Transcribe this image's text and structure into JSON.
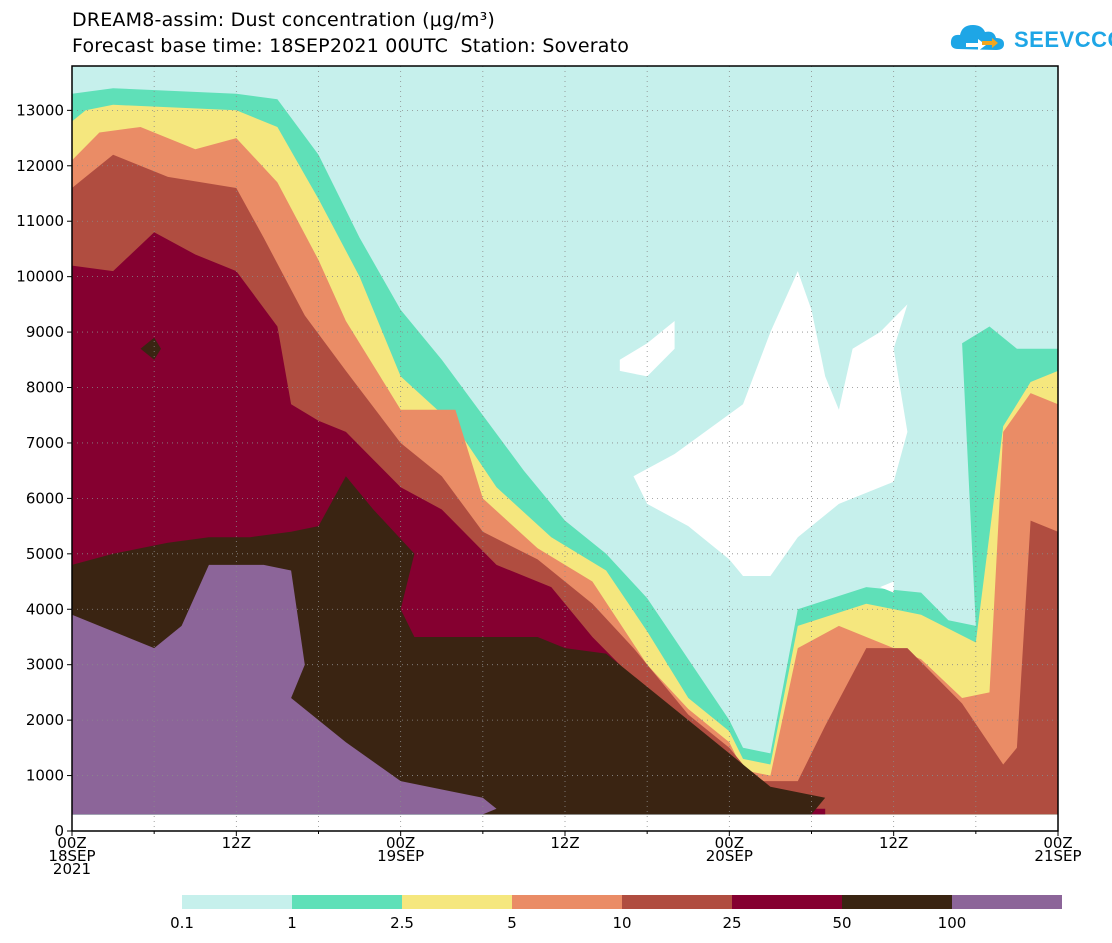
{
  "header": {
    "title_line1": "DREAM8-assim: Dust concentration (μg/m³)",
    "title_line2": "Forecast base time: 18SEP2021 00UTC  Station: Soverato",
    "logo_text": "SEEVCCC"
  },
  "chart_data": {
    "type": "heatmap",
    "title": "DREAM8-assim: Dust concentration (μg/m³)",
    "subtitle": "Forecast base time: 18SEP2021 00UTC  Station: Soverato",
    "xlabel": "",
    "ylabel": "",
    "ylim": [
      0,
      13800
    ],
    "xlim_hours": [
      0,
      72
    ],
    "grid": true,
    "y_ticks": [
      0,
      1000,
      2000,
      3000,
      4000,
      5000,
      6000,
      7000,
      8000,
      9000,
      10000,
      11000,
      12000,
      13000
    ],
    "x_ticks": [
      {
        "hour": 0,
        "lines": [
          "00Z",
          "18SEP",
          "2021"
        ]
      },
      {
        "hour": 12,
        "lines": [
          "12Z"
        ]
      },
      {
        "hour": 24,
        "lines": [
          "00Z",
          "19SEP"
        ]
      },
      {
        "hour": 36,
        "lines": [
          "12Z"
        ]
      },
      {
        "hour": 48,
        "lines": [
          "00Z",
          "20SEP"
        ]
      },
      {
        "hour": 60,
        "lines": [
          "12Z"
        ]
      },
      {
        "hour": 72,
        "lines": [
          "00Z",
          "21SEP"
        ]
      }
    ],
    "levels": [
      {
        "label": "0.1",
        "color": "#c6f0ec"
      },
      {
        "label": "1",
        "color": "#5fe0b8"
      },
      {
        "label": "2.5",
        "color": "#f5e77e"
      },
      {
        "label": "5",
        "color": "#ea8c66"
      },
      {
        "label": "10",
        "color": "#b04d40"
      },
      {
        "label": "25",
        "color": "#850030"
      },
      {
        "label": "50",
        "color": "#3a2412"
      },
      {
        "label": "100",
        "color": "#8c6599"
      }
    ],
    "regions": [
      {
        "level": 1,
        "points": [
          [
            0,
            13300
          ],
          [
            3,
            13400
          ],
          [
            12,
            13300
          ],
          [
            15,
            13200
          ],
          [
            18,
            12200
          ],
          [
            21,
            10700
          ],
          [
            24,
            9400
          ],
          [
            27,
            8500
          ],
          [
            30,
            7500
          ],
          [
            33,
            6500
          ],
          [
            36,
            5600
          ],
          [
            39,
            5000
          ],
          [
            42,
            4200
          ],
          [
            45,
            3100
          ],
          [
            48,
            2000
          ],
          [
            49,
            1500
          ],
          [
            51,
            1400
          ],
          [
            53,
            4000
          ],
          [
            58,
            4400
          ],
          [
            62,
            4300
          ],
          [
            64,
            3800
          ],
          [
            66,
            3700
          ],
          [
            65,
            8800
          ],
          [
            67,
            9100
          ],
          [
            69,
            8700
          ],
          [
            72,
            8700
          ],
          [
            72,
            300
          ],
          [
            0,
            300
          ]
        ]
      },
      {
        "level": 2,
        "points": [
          [
            0,
            12800
          ],
          [
            1,
            13000
          ],
          [
            3,
            13100
          ],
          [
            12,
            13000
          ],
          [
            15,
            12700
          ],
          [
            18,
            11400
          ],
          [
            21,
            10000
          ],
          [
            24,
            8200
          ],
          [
            28,
            7300
          ],
          [
            31,
            6200
          ],
          [
            35,
            5300
          ],
          [
            39,
            4700
          ],
          [
            42,
            3600
          ],
          [
            45,
            2400
          ],
          [
            48,
            1800
          ],
          [
            49,
            1300
          ],
          [
            51,
            1200
          ],
          [
            53,
            3700
          ],
          [
            58,
            4100
          ],
          [
            62,
            3900
          ],
          [
            66,
            3400
          ],
          [
            68,
            7300
          ],
          [
            70,
            8100
          ],
          [
            72,
            8300
          ],
          [
            72,
            300
          ],
          [
            0,
            300
          ]
        ]
      },
      {
        "level": 3,
        "points": [
          [
            0,
            12100
          ],
          [
            2,
            12600
          ],
          [
            5,
            12700
          ],
          [
            9,
            12300
          ],
          [
            12,
            12500
          ],
          [
            15,
            11700
          ],
          [
            18,
            10300
          ],
          [
            20,
            9200
          ],
          [
            24,
            7600
          ],
          [
            28,
            7600
          ],
          [
            30,
            6000
          ],
          [
            34,
            5100
          ],
          [
            38,
            4500
          ],
          [
            42,
            3000
          ],
          [
            45,
            2200
          ],
          [
            48,
            1600
          ],
          [
            49,
            1100
          ],
          [
            51,
            1000
          ],
          [
            53,
            3300
          ],
          [
            56,
            3700
          ],
          [
            62,
            3100
          ],
          [
            65,
            2400
          ],
          [
            67,
            2500
          ],
          [
            68,
            7200
          ],
          [
            70,
            7900
          ],
          [
            72,
            7700
          ],
          [
            72,
            300
          ],
          [
            0,
            300
          ]
        ]
      },
      {
        "level": 4,
        "points": [
          [
            0,
            11600
          ],
          [
            1,
            11800
          ],
          [
            3,
            12200
          ],
          [
            7,
            11800
          ],
          [
            12,
            11600
          ],
          [
            14,
            10700
          ],
          [
            17,
            9300
          ],
          [
            20,
            8300
          ],
          [
            24,
            7000
          ],
          [
            27,
            6400
          ],
          [
            30,
            5400
          ],
          [
            34,
            4900
          ],
          [
            38,
            4100
          ],
          [
            41,
            3300
          ],
          [
            45,
            2100
          ],
          [
            48,
            1500
          ],
          [
            50,
            900
          ],
          [
            53,
            900
          ],
          [
            55,
            1900
          ],
          [
            58,
            3300
          ],
          [
            61,
            3300
          ],
          [
            65,
            2300
          ],
          [
            68,
            1200
          ],
          [
            69,
            1500
          ],
          [
            70,
            5600
          ],
          [
            72,
            5400
          ],
          [
            72,
            300
          ],
          [
            0,
            300
          ]
        ]
      },
      {
        "level": 5,
        "points": [
          [
            0,
            10200
          ],
          [
            3,
            10100
          ],
          [
            6,
            10800
          ],
          [
            9,
            10400
          ],
          [
            12,
            10100
          ],
          [
            15,
            9100
          ],
          [
            16,
            7700
          ],
          [
            18,
            7400
          ],
          [
            20,
            7200
          ],
          [
            22,
            6700
          ],
          [
            24,
            6200
          ],
          [
            27,
            5800
          ],
          [
            31,
            4800
          ],
          [
            35,
            4400
          ],
          [
            38,
            3500
          ],
          [
            42,
            2500
          ],
          [
            45,
            1800
          ],
          [
            48,
            1300
          ],
          [
            50,
            700
          ],
          [
            53,
            400
          ],
          [
            55,
            400
          ],
          [
            55,
            300
          ],
          [
            0,
            300
          ]
        ]
      },
      {
        "level": 6,
        "points": [
          [
            0,
            4800
          ],
          [
            3,
            5000
          ],
          [
            5,
            5100
          ],
          [
            7,
            5200
          ],
          [
            10,
            5300
          ],
          [
            13,
            5300
          ],
          [
            16,
            5400
          ],
          [
            18,
            5500
          ],
          [
            20,
            6400
          ],
          [
            22,
            5800
          ],
          [
            25,
            5000
          ],
          [
            24,
            4000
          ],
          [
            25,
            3500
          ],
          [
            30,
            3500
          ],
          [
            34,
            3500
          ],
          [
            36,
            3300
          ],
          [
            39,
            3200
          ],
          [
            42,
            2600
          ],
          [
            45,
            2000
          ],
          [
            47,
            1600
          ],
          [
            51,
            800
          ],
          [
            55,
            600
          ],
          [
            54,
            300
          ],
          [
            0,
            300
          ]
        ]
      },
      {
        "level": 7,
        "points": [
          [
            0,
            3900
          ],
          [
            2,
            3700
          ],
          [
            4,
            3500
          ],
          [
            6,
            3300
          ],
          [
            8,
            3700
          ],
          [
            10,
            4800
          ],
          [
            14,
            4800
          ],
          [
            16,
            4700
          ],
          [
            17,
            3000
          ],
          [
            16,
            2400
          ],
          [
            20,
            1600
          ],
          [
            24,
            900
          ],
          [
            28,
            700
          ],
          [
            30,
            600
          ],
          [
            31,
            400
          ],
          [
            30,
            300
          ],
          [
            0,
            300
          ]
        ]
      },
      {
        "level": 5,
        "points": [
          [
            5,
            5600
          ],
          [
            6,
            5900
          ],
          [
            8,
            5700
          ],
          [
            9,
            5400
          ],
          [
            6,
            5300
          ]
        ]
      },
      {
        "level": 6,
        "points": [
          [
            5,
            8700
          ],
          [
            6,
            8900
          ],
          [
            6.5,
            8700
          ],
          [
            6,
            8500
          ]
        ]
      },
      {
        "level": 0,
        "points": [
          [
            41,
            6400
          ],
          [
            44,
            6800
          ],
          [
            49,
            7700
          ],
          [
            51,
            9000
          ],
          [
            53,
            10100
          ],
          [
            54,
            9400
          ],
          [
            55,
            8200
          ],
          [
            56,
            7600
          ],
          [
            57,
            8700
          ],
          [
            59,
            9000
          ],
          [
            61,
            9500
          ],
          [
            60,
            8700
          ],
          [
            61,
            7200
          ],
          [
            60,
            6300
          ],
          [
            56,
            5900
          ],
          [
            53,
            5300
          ],
          [
            51,
            4600
          ],
          [
            49,
            4600
          ],
          [
            48,
            4900
          ],
          [
            45,
            5500
          ],
          [
            42,
            5900
          ]
        ]
      },
      {
        "level": 0,
        "points": [
          [
            40,
            8500
          ],
          [
            42,
            8800
          ],
          [
            43,
            9000
          ],
          [
            44,
            9200
          ],
          [
            44,
            8700
          ],
          [
            42,
            8200
          ],
          [
            40,
            8300
          ]
        ]
      },
      {
        "level": 0,
        "points": [
          [
            59,
            4400
          ],
          [
            60,
            4500
          ],
          [
            60,
            4300
          ]
        ]
      }
    ],
    "x_axis_color": "#000",
    "colorbar_labels": [
      "0.1",
      "1",
      "2.5",
      "5",
      "10",
      "25",
      "50",
      "100"
    ]
  }
}
